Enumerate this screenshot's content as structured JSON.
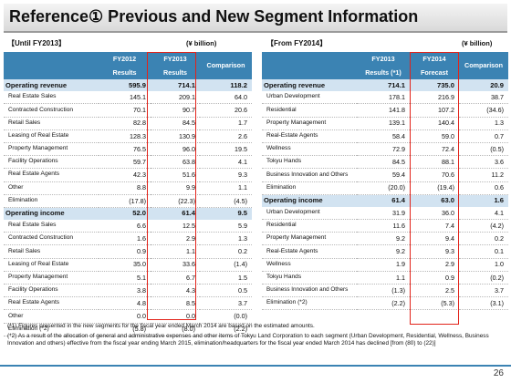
{
  "title": "Reference①  Previous and New Segment Information",
  "left": {
    "caption": "【Until FY2013】",
    "unit": "(¥ billion)",
    "headers": {
      "c1a": "FY2012",
      "c1b": "Results",
      "c2a": "FY2013",
      "c2b": "Results",
      "c3": "Comparison"
    },
    "rows": [
      {
        "label": "Operating revenue",
        "v1": "595.9",
        "v2": "714.1",
        "v3": "118.2",
        "section": true
      },
      {
        "label": "Real Estate Sales",
        "v1": "145.1",
        "v2": "209.1",
        "v3": "64.0"
      },
      {
        "label": "Contracted Construction",
        "v1": "70.1",
        "v2": "90.7",
        "v3": "20.6"
      },
      {
        "label": "Retail Sales",
        "v1": "82.8",
        "v2": "84.5",
        "v3": "1.7"
      },
      {
        "label": "Leasing of Real Estate",
        "v1": "128.3",
        "v2": "130.9",
        "v3": "2.6"
      },
      {
        "label": "Property Management",
        "v1": "76.5",
        "v2": "96.0",
        "v3": "19.5"
      },
      {
        "label": "Facility Operations",
        "v1": "59.7",
        "v2": "63.8",
        "v3": "4.1"
      },
      {
        "label": "Real Estate Agents",
        "v1": "42.3",
        "v2": "51.6",
        "v3": "9.3"
      },
      {
        "label": "Other",
        "v1": "8.8",
        "v2": "9.9",
        "v3": "1.1"
      },
      {
        "label": "Elimination",
        "v1": "(17.8)",
        "v2": "(22.3)",
        "v3": "(4.5)"
      },
      {
        "label": "Operating income",
        "v1": "52.0",
        "v2": "61.4",
        "v3": "9.5",
        "section": true
      },
      {
        "label": "Real Estate Sales",
        "v1": "6.6",
        "v2": "12.5",
        "v3": "5.9"
      },
      {
        "label": "Contracted Construction",
        "v1": "1.6",
        "v2": "2.9",
        "v3": "1.3"
      },
      {
        "label": "Retail Sales",
        "v1": "0.9",
        "v2": "1.1",
        "v3": "0.2"
      },
      {
        "label": "Leasing of Real Estate",
        "v1": "35.0",
        "v2": "33.6",
        "v3": "(1.4)"
      },
      {
        "label": "Property Management",
        "v1": "5.1",
        "v2": "6.7",
        "v3": "1.5"
      },
      {
        "label": "Facility Operations",
        "v1": "3.8",
        "v2": "4.3",
        "v3": "0.5"
      },
      {
        "label": "Real Estate Agents",
        "v1": "4.8",
        "v2": "8.5",
        "v3": "3.7"
      },
      {
        "label": "Other",
        "v1": "0.0",
        "v2": "0.0",
        "v3": "(0.0)"
      },
      {
        "label": "Elimination (*2)",
        "v1": "(5.8)",
        "v2": "(8.0)",
        "v3": "(2.2)"
      }
    ]
  },
  "right": {
    "caption": "【From FY2014】",
    "unit": "(¥ billion)",
    "headers": {
      "c1a": "FY2013",
      "c1b": "Results (*1)",
      "c2a": "FY2014",
      "c2b": "Forecast",
      "c3": "Comparison"
    },
    "rows": [
      {
        "label": "Operating revenue",
        "v1": "714.1",
        "v2": "735.0",
        "v3": "20.9",
        "section": true
      },
      {
        "label": "Urban Development",
        "v1": "178.1",
        "v2": "216.9",
        "v3": "38.7"
      },
      {
        "label": "Residential",
        "v1": "141.8",
        "v2": "107.2",
        "v3": "(34.6)"
      },
      {
        "label": "Property Management",
        "v1": "139.1",
        "v2": "140.4",
        "v3": "1.3"
      },
      {
        "label": "Real-Estate Agents",
        "v1": "58.4",
        "v2": "59.0",
        "v3": "0.7"
      },
      {
        "label": "Wellness",
        "v1": "72.9",
        "v2": "72.4",
        "v3": "(0.5)"
      },
      {
        "label": "Tokyu Hands",
        "v1": "84.5",
        "v2": "88.1",
        "v3": "3.6"
      },
      {
        "label": "Business Innovation and Others",
        "v1": "59.4",
        "v2": "70.6",
        "v3": "11.2",
        "wrap": true
      },
      {
        "label": "Elimination",
        "v1": "(20.0)",
        "v2": "(19.4)",
        "v3": "0.6"
      },
      {
        "label": "Operating income",
        "v1": "61.4",
        "v2": "63.0",
        "v3": "1.6",
        "section": true
      },
      {
        "label": "Urban Development",
        "v1": "31.9",
        "v2": "36.0",
        "v3": "4.1"
      },
      {
        "label": "Residential",
        "v1": "11.6",
        "v2": "7.4",
        "v3": "(4.2)"
      },
      {
        "label": "Property Management",
        "v1": "9.2",
        "v2": "9.4",
        "v3": "0.2"
      },
      {
        "label": "Real-Estate Agents",
        "v1": "9.2",
        "v2": "9.3",
        "v3": "0.1"
      },
      {
        "label": "Wellness",
        "v1": "1.9",
        "v2": "2.9",
        "v3": "1.0"
      },
      {
        "label": "Tokyu Hands",
        "v1": "1.1",
        "v2": "0.9",
        "v3": "(0.2)"
      },
      {
        "label": "Business Innovation and Others",
        "v1": "(1.3)",
        "v2": "2.5",
        "v3": "3.7",
        "wrap": true
      },
      {
        "label": "Elimination (*2)",
        "v1": "(2.2)",
        "v2": "(5.3)",
        "v3": "(3.1)"
      }
    ]
  },
  "notes": [
    "(*1) Figures presented in the new segments for the fiscal year ended March 2014 are based on the estimated amounts.",
    "(*2) As a result of the allocation of general and administrative expenses and other items of Tokyu Land Corporation to each segment (Urban Development, Residential, Wellness, Business Innovation and others) effective from the fiscal year ending March 2015, elimination/headquarters for the fiscal year ended March 2014 has declined [from (80) to (22)]"
  ],
  "page_number": "26",
  "colors": {
    "header": "#3b83b3",
    "section": "#d2e3f1",
    "highlight": "#e2231a"
  }
}
